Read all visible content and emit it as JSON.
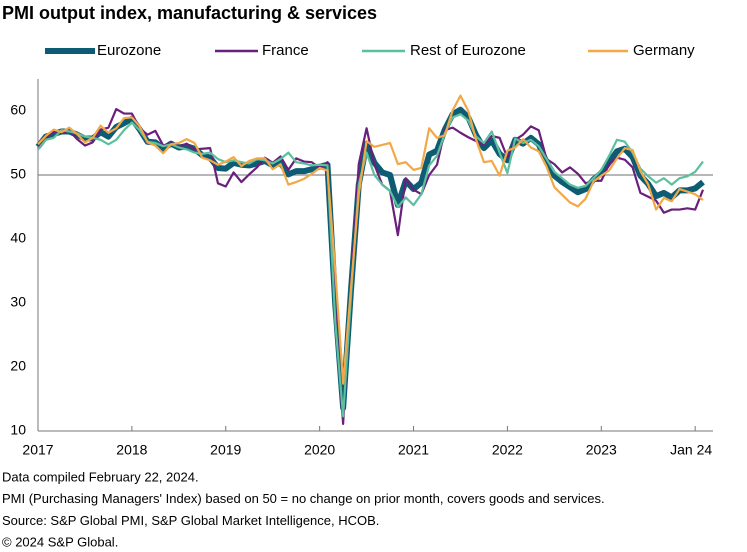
{
  "chart_data": {
    "type": "line",
    "title": "PMI output index, manufacturing & services",
    "x": [
      "2017-01",
      "2017-02",
      "2017-03",
      "2017-04",
      "2017-05",
      "2017-06",
      "2017-07",
      "2017-08",
      "2017-09",
      "2017-10",
      "2017-11",
      "2017-12",
      "2018-01",
      "2018-02",
      "2018-03",
      "2018-04",
      "2018-05",
      "2018-06",
      "2018-07",
      "2018-08",
      "2018-09",
      "2018-10",
      "2018-11",
      "2018-12",
      "2019-01",
      "2019-02",
      "2019-03",
      "2019-04",
      "2019-05",
      "2019-06",
      "2019-07",
      "2019-08",
      "2019-09",
      "2019-10",
      "2019-11",
      "2019-12",
      "2020-01",
      "2020-02",
      "2020-03",
      "2020-04",
      "2020-05",
      "2020-06",
      "2020-07",
      "2020-08",
      "2020-09",
      "2020-10",
      "2020-11",
      "2020-12",
      "2021-01",
      "2021-02",
      "2021-03",
      "2021-04",
      "2021-05",
      "2021-06",
      "2021-07",
      "2021-08",
      "2021-09",
      "2021-10",
      "2021-11",
      "2021-12",
      "2022-01",
      "2022-02",
      "2022-03",
      "2022-04",
      "2022-05",
      "2022-06",
      "2022-07",
      "2022-08",
      "2022-09",
      "2022-10",
      "2022-11",
      "2022-12",
      "2023-01",
      "2023-02",
      "2023-03",
      "2023-04",
      "2023-05",
      "2023-06",
      "2023-07",
      "2023-08",
      "2023-09",
      "2023-10",
      "2023-11",
      "2023-12",
      "2024-01",
      "2024-02"
    ],
    "series": [
      {
        "name": "Eurozone",
        "color": "#0e5c74",
        "values": [
          54.4,
          56.0,
          56.4,
          56.8,
          56.8,
          56.3,
          55.7,
          55.7,
          56.7,
          56.0,
          57.5,
          58.1,
          58.8,
          57.1,
          55.2,
          55.1,
          54.1,
          54.9,
          54.3,
          54.5,
          54.1,
          53.1,
          52.7,
          51.1,
          51.0,
          51.9,
          51.6,
          51.5,
          51.8,
          52.2,
          51.5,
          51.9,
          50.1,
          50.6,
          50.6,
          50.9,
          51.3,
          51.6,
          29.7,
          13.6,
          31.9,
          48.5,
          54.9,
          51.9,
          50.4,
          50.0,
          45.3,
          49.1,
          47.8,
          48.8,
          53.2,
          53.8,
          57.1,
          59.5,
          60.2,
          59.0,
          56.2,
          54.2,
          55.4,
          53.3,
          52.3,
          55.5,
          54.9,
          55.8,
          54.8,
          52.0,
          49.9,
          48.9,
          48.1,
          47.3,
          47.8,
          49.3,
          50.3,
          52.0,
          53.7,
          54.1,
          52.8,
          49.9,
          48.6,
          46.7,
          47.2,
          46.5,
          47.6,
          47.6,
          47.9,
          48.9
        ]
      },
      {
        "name": "France",
        "color": "#6b1f7c",
        "values": [
          54.1,
          55.9,
          56.8,
          56.6,
          56.9,
          55.6,
          54.6,
          55.1,
          57.1,
          57.4,
          60.3,
          59.6,
          59.6,
          57.3,
          56.3,
          56.9,
          54.6,
          55.0,
          54.4,
          54.9,
          54.0,
          54.1,
          54.2,
          48.7,
          48.2,
          50.4,
          48.9,
          50.1,
          51.2,
          52.7,
          51.9,
          52.9,
          50.8,
          52.6,
          52.1,
          52.0,
          51.1,
          52.0,
          28.9,
          11.1,
          32.1,
          51.7,
          57.3,
          51.6,
          48.5,
          47.5,
          40.6,
          49.5,
          47.7,
          47.0,
          50.0,
          51.6,
          57.0,
          57.4,
          56.6,
          55.9,
          55.3,
          54.7,
          56.1,
          55.8,
          52.7,
          55.5,
          56.3,
          57.6,
          57.0,
          52.5,
          51.7,
          50.4,
          51.2,
          50.2,
          48.7,
          49.1,
          49.1,
          51.7,
          52.7,
          52.4,
          51.2,
          47.2,
          46.6,
          46.0,
          44.1,
          44.6,
          44.6,
          44.8,
          44.6,
          47.7
        ]
      },
      {
        "name": "Rest of Eurozone",
        "color": "#5cbf9e",
        "values": [
          54.0,
          55.5,
          55.8,
          57.0,
          56.8,
          56.5,
          56.0,
          55.8,
          55.5,
          54.8,
          55.5,
          57.0,
          58.2,
          57.0,
          55.2,
          55.0,
          54.5,
          54.8,
          54.3,
          54.0,
          53.5,
          53.3,
          53.5,
          52.5,
          52.0,
          52.3,
          52.0,
          51.8,
          52.5,
          52.3,
          51.8,
          52.5,
          53.5,
          52.0,
          51.8,
          51.5,
          51.6,
          51.5,
          27.0,
          12.3,
          31.0,
          48.5,
          53.5,
          50.0,
          48.5,
          47.5,
          45.0,
          46.5,
          45.3,
          47.0,
          51.5,
          53.0,
          56.5,
          59.0,
          59.5,
          58.5,
          56.0,
          55.0,
          56.8,
          53.5,
          50.3,
          55.7,
          55.0,
          55.5,
          54.5,
          52.5,
          50.5,
          49.5,
          48.5,
          48.0,
          48.3,
          49.5,
          50.8,
          53.0,
          55.5,
          55.2,
          53.5,
          51.0,
          49.8,
          48.8,
          49.5,
          48.5,
          49.5,
          49.8,
          50.5,
          52.1
        ]
      },
      {
        "name": "Germany",
        "color": "#f2a847",
        "values": [
          54.8,
          56.1,
          57.1,
          56.7,
          57.4,
          56.4,
          55.1,
          55.8,
          57.7,
          56.6,
          57.3,
          58.9,
          59.0,
          57.6,
          55.1,
          54.6,
          53.4,
          54.8,
          55.0,
          55.6,
          55.0,
          52.7,
          52.3,
          51.6,
          52.1,
          52.8,
          51.4,
          52.2,
          52.6,
          52.6,
          50.9,
          51.7,
          48.5,
          48.9,
          49.4,
          50.2,
          51.1,
          50.7,
          35.0,
          17.4,
          32.3,
          47.0,
          55.3,
          54.4,
          54.7,
          55.0,
          51.7,
          52.0,
          50.8,
          51.1,
          57.3,
          55.8,
          56.2,
          60.1,
          62.4,
          60.0,
          55.5,
          52.0,
          52.2,
          49.9,
          53.8,
          54.3,
          55.6,
          54.3,
          53.7,
          51.3,
          48.1,
          46.9,
          45.7,
          45.1,
          46.3,
          49.0,
          49.9,
          50.7,
          52.6,
          54.2,
          53.9,
          50.6,
          48.5,
          44.6,
          46.4,
          45.9,
          47.8,
          47.4,
          47.0,
          46.1
        ]
      }
    ],
    "xlim": [
      "2017-01",
      "2024-02"
    ],
    "xticks": [
      {
        "value": "2017-01",
        "label": "2017"
      },
      {
        "value": "2018-01",
        "label": "2018"
      },
      {
        "value": "2019-01",
        "label": "2019"
      },
      {
        "value": "2020-01",
        "label": "2020"
      },
      {
        "value": "2021-01",
        "label": "2021"
      },
      {
        "value": "2022-01",
        "label": "2022"
      },
      {
        "value": "2023-01",
        "label": "2023"
      },
      {
        "value": "2024-01",
        "label": "Jan 24"
      }
    ],
    "ylim": [
      10,
      65
    ],
    "yticks": [
      10,
      20,
      30,
      40,
      50,
      60
    ],
    "reference_line": 50,
    "grid": false,
    "notes": [
      "Data compiled February 22, 2024.",
      "PMI (Purchasing Managers' Index) based on 50 = no change on prior month, covers goods and services.",
      "Source: S&P Global PMI, S&P Global Market Intelligence, HCOB.",
      "© 2024 S&P Global."
    ]
  }
}
